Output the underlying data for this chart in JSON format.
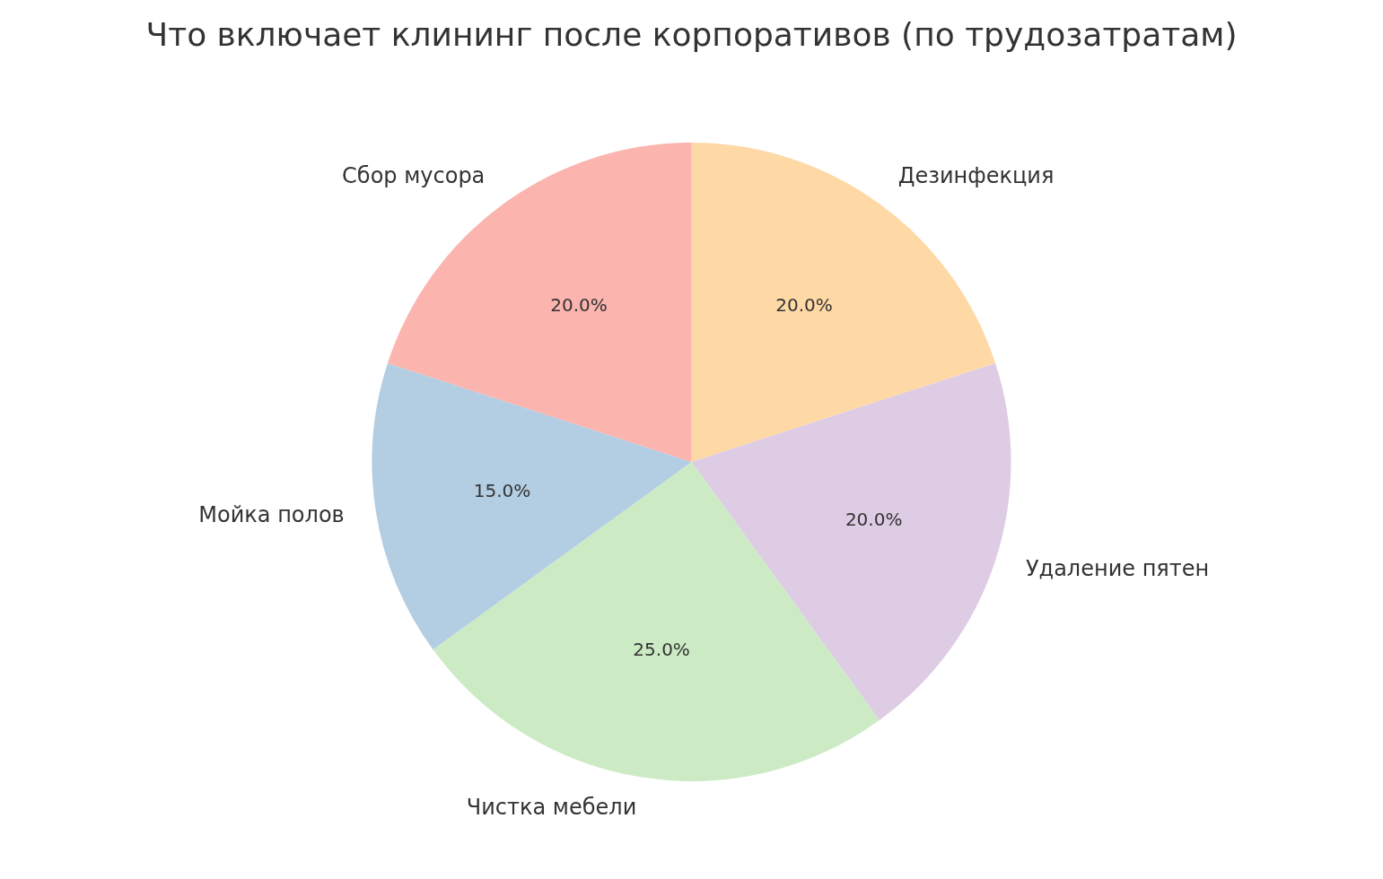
{
  "chart_data": {
    "type": "pie",
    "title": "Что включает клининг после корпоративов (по трудозатратам)",
    "categories": [
      "Дезинфекция",
      "Удаление пятен",
      "Чистка мебели",
      "Мойка полов",
      "Сбор мусора"
    ],
    "values": [
      20,
      20,
      25,
      15,
      20
    ],
    "value_labels": [
      "20.0%",
      "20.0%",
      "25.0%",
      "15.0%",
      "20.0%"
    ],
    "colors": [
      "#fed9a6",
      "#decbe4",
      "#ccebc5",
      "#b3cde3",
      "#fbb4ae"
    ],
    "legend": false
  }
}
